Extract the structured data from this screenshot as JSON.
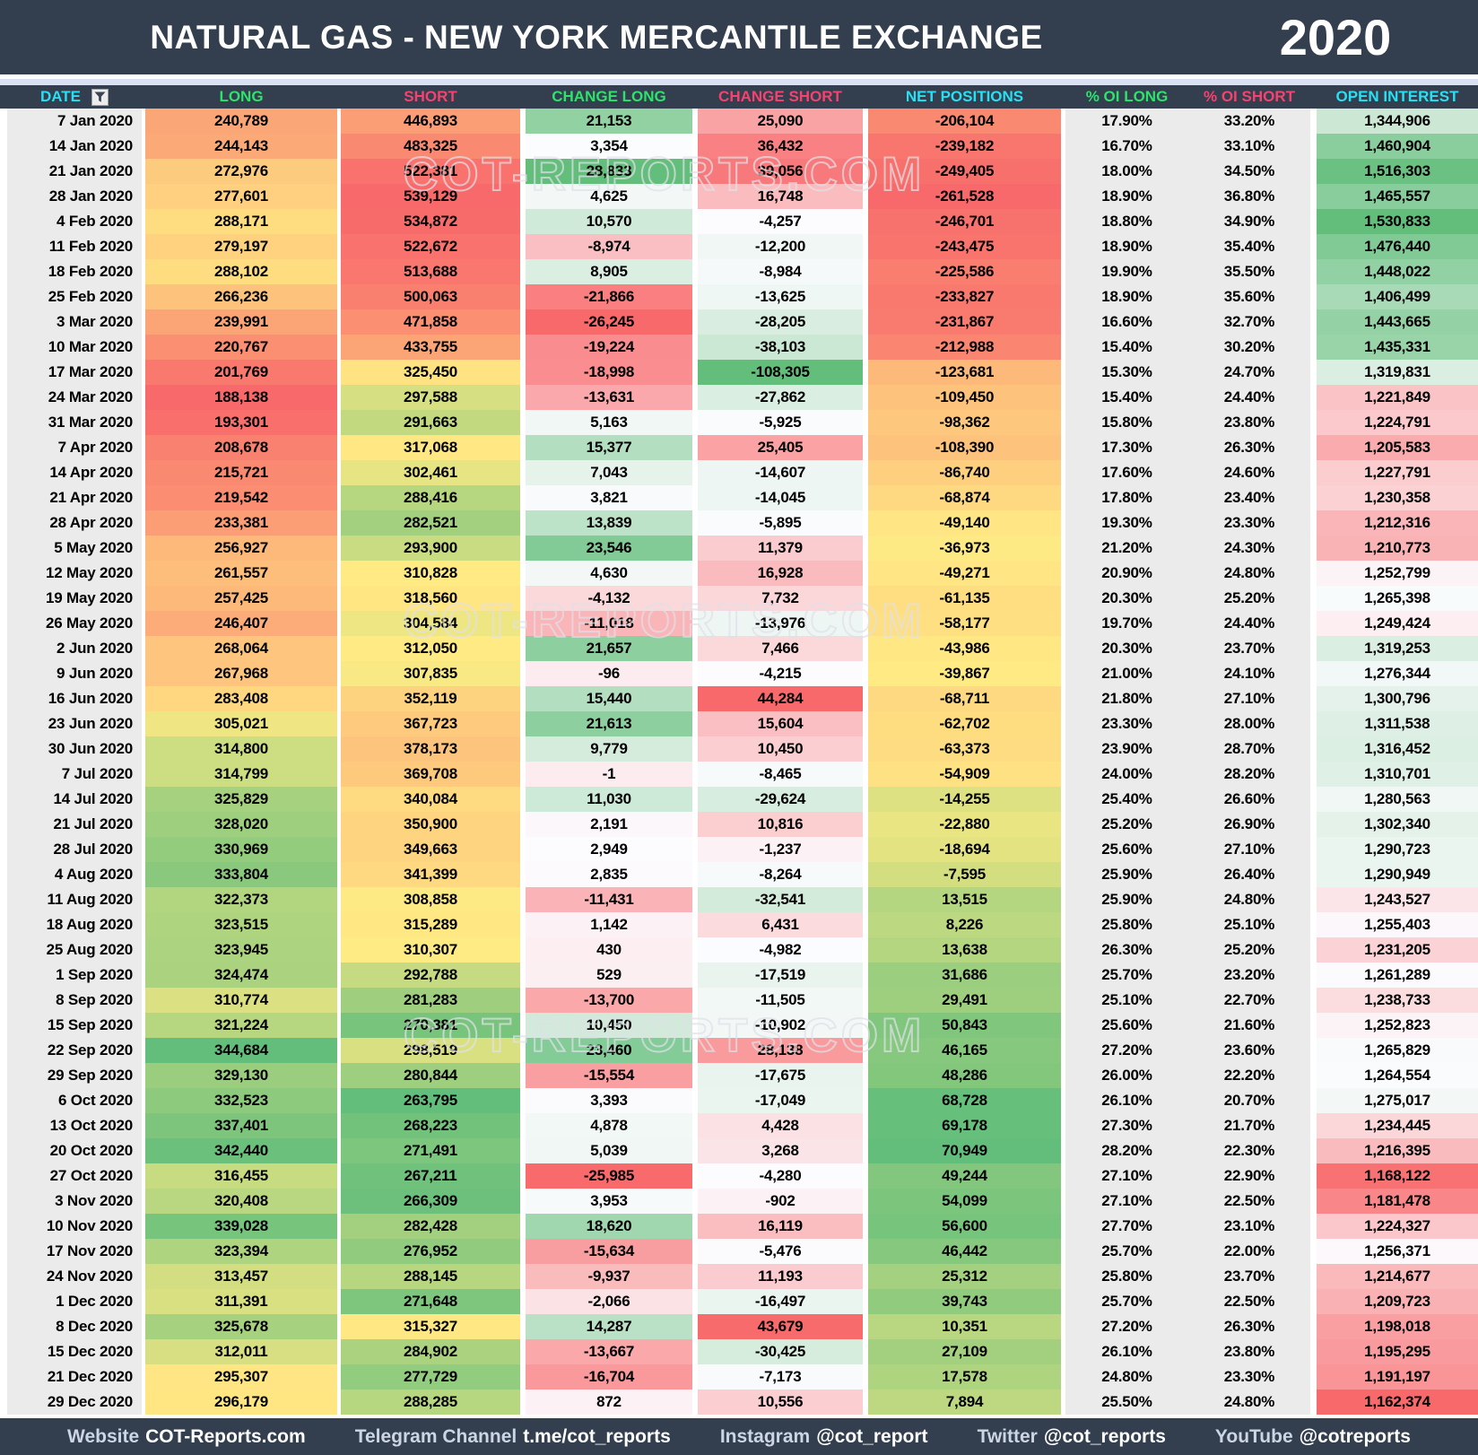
{
  "header": {
    "title": "NATURAL GAS - NEW YORK MERCANTILE EXCHANGE",
    "year": "2020"
  },
  "watermark": {
    "text": "COT-REPORTS.COM"
  },
  "heatmap": {
    "red": "#F8696B",
    "yellow": "#FFEB84",
    "green": "#63BE7B",
    "white": "#FCFCFF",
    "flat_bg": "#EBEBEB",
    "navy": "#333F4F",
    "divider": "#D9E1F2"
  },
  "chart_data": {
    "type": "table",
    "columns": [
      {
        "key": "date",
        "label": "DATE",
        "header_color": "#29E0F2",
        "scale": "none"
      },
      {
        "key": "long",
        "label": "LONG",
        "header_color": "#2EE26B",
        "scale": "ryg"
      },
      {
        "key": "short",
        "label": "SHORT",
        "header_color": "#F5426F",
        "scale": "gyr"
      },
      {
        "key": "change-long",
        "label": "CHANGE LONG",
        "header_color": "#2EE26B",
        "scale": "rwg"
      },
      {
        "key": "change-short",
        "label": "CHANGE SHORT",
        "header_color": "#F5426F",
        "scale": "gwr"
      },
      {
        "key": "net-positions",
        "label": "NET POSITIONS",
        "header_color": "#29E0F2",
        "scale": "ryg"
      },
      {
        "key": "pct-oi-long",
        "label": "% OI LONG",
        "header_color": "#2EE26B",
        "scale": "flat"
      },
      {
        "key": "pct-oi-short",
        "label": "% OI SHORT",
        "header_color": "#F5426F",
        "scale": "flat"
      },
      {
        "key": "open-interest",
        "label": "OPEN INTEREST",
        "header_color": "#29E0F2",
        "scale": "rwg"
      }
    ],
    "rows": [
      [
        "7 Jan 2020",
        "240,789",
        "446,893",
        "21,153",
        "25,090",
        "-206,104",
        "17.90%",
        "33.20%",
        "1,344,906"
      ],
      [
        "14 Jan 2020",
        "244,143",
        "483,325",
        "3,354",
        "36,432",
        "-239,182",
        "16.70%",
        "33.10%",
        "1,460,904"
      ],
      [
        "21 Jan 2020",
        "272,976",
        "522,381",
        "28,833",
        "39,056",
        "-249,405",
        "18.00%",
        "34.50%",
        "1,516,303"
      ],
      [
        "28 Jan 2020",
        "277,601",
        "539,129",
        "4,625",
        "16,748",
        "-261,528",
        "18.90%",
        "36.80%",
        "1,465,557"
      ],
      [
        "4 Feb 2020",
        "288,171",
        "534,872",
        "10,570",
        "-4,257",
        "-246,701",
        "18.80%",
        "34.90%",
        "1,530,833"
      ],
      [
        "11 Feb 2020",
        "279,197",
        "522,672",
        "-8,974",
        "-12,200",
        "-243,475",
        "18.90%",
        "35.40%",
        "1,476,440"
      ],
      [
        "18 Feb 2020",
        "288,102",
        "513,688",
        "8,905",
        "-8,984",
        "-225,586",
        "19.90%",
        "35.50%",
        "1,448,022"
      ],
      [
        "25 Feb 2020",
        "266,236",
        "500,063",
        "-21,866",
        "-13,625",
        "-233,827",
        "18.90%",
        "35.60%",
        "1,406,499"
      ],
      [
        "3 Mar 2020",
        "239,991",
        "471,858",
        "-26,245",
        "-28,205",
        "-231,867",
        "16.60%",
        "32.70%",
        "1,443,665"
      ],
      [
        "10 Mar 2020",
        "220,767",
        "433,755",
        "-19,224",
        "-38,103",
        "-212,988",
        "15.40%",
        "30.20%",
        "1,435,331"
      ],
      [
        "17 Mar 2020",
        "201,769",
        "325,450",
        "-18,998",
        "-108,305",
        "-123,681",
        "15.30%",
        "24.70%",
        "1,319,831"
      ],
      [
        "24 Mar 2020",
        "188,138",
        "297,588",
        "-13,631",
        "-27,862",
        "-109,450",
        "15.40%",
        "24.40%",
        "1,221,849"
      ],
      [
        "31 Mar 2020",
        "193,301",
        "291,663",
        "5,163",
        "-5,925",
        "-98,362",
        "15.80%",
        "23.80%",
        "1,224,791"
      ],
      [
        "7 Apr 2020",
        "208,678",
        "317,068",
        "15,377",
        "25,405",
        "-108,390",
        "17.30%",
        "26.30%",
        "1,205,583"
      ],
      [
        "14 Apr 2020",
        "215,721",
        "302,461",
        "7,043",
        "-14,607",
        "-86,740",
        "17.60%",
        "24.60%",
        "1,227,791"
      ],
      [
        "21 Apr 2020",
        "219,542",
        "288,416",
        "3,821",
        "-14,045",
        "-68,874",
        "17.80%",
        "23.40%",
        "1,230,358"
      ],
      [
        "28 Apr 2020",
        "233,381",
        "282,521",
        "13,839",
        "-5,895",
        "-49,140",
        "19.30%",
        "23.30%",
        "1,212,316"
      ],
      [
        "5 May 2020",
        "256,927",
        "293,900",
        "23,546",
        "11,379",
        "-36,973",
        "21.20%",
        "24.30%",
        "1,210,773"
      ],
      [
        "12 May 2020",
        "261,557",
        "310,828",
        "4,630",
        "16,928",
        "-49,271",
        "20.90%",
        "24.80%",
        "1,252,799"
      ],
      [
        "19 May 2020",
        "257,425",
        "318,560",
        "-4,132",
        "7,732",
        "-61,135",
        "20.30%",
        "25.20%",
        "1,265,398"
      ],
      [
        "26 May 2020",
        "246,407",
        "304,584",
        "-11,018",
        "-13,976",
        "-58,177",
        "19.70%",
        "24.40%",
        "1,249,424"
      ],
      [
        "2 Jun 2020",
        "268,064",
        "312,050",
        "21,657",
        "7,466",
        "-43,986",
        "20.30%",
        "23.70%",
        "1,319,253"
      ],
      [
        "9 Jun 2020",
        "267,968",
        "307,835",
        "-96",
        "-4,215",
        "-39,867",
        "21.00%",
        "24.10%",
        "1,276,344"
      ],
      [
        "16 Jun 2020",
        "283,408",
        "352,119",
        "15,440",
        "44,284",
        "-68,711",
        "21.80%",
        "27.10%",
        "1,300,796"
      ],
      [
        "23 Jun 2020",
        "305,021",
        "367,723",
        "21,613",
        "15,604",
        "-62,702",
        "23.30%",
        "28.00%",
        "1,311,538"
      ],
      [
        "30 Jun 2020",
        "314,800",
        "378,173",
        "9,779",
        "10,450",
        "-63,373",
        "23.90%",
        "28.70%",
        "1,316,452"
      ],
      [
        "7 Jul 2020",
        "314,799",
        "369,708",
        "-1",
        "-8,465",
        "-54,909",
        "24.00%",
        "28.20%",
        "1,310,701"
      ],
      [
        "14 Jul 2020",
        "325,829",
        "340,084",
        "11,030",
        "-29,624",
        "-14,255",
        "25.40%",
        "26.60%",
        "1,280,563"
      ],
      [
        "21 Jul 2020",
        "328,020",
        "350,900",
        "2,191",
        "10,816",
        "-22,880",
        "25.20%",
        "26.90%",
        "1,302,340"
      ],
      [
        "28 Jul 2020",
        "330,969",
        "349,663",
        "2,949",
        "-1,237",
        "-18,694",
        "25.60%",
        "27.10%",
        "1,290,723"
      ],
      [
        "4 Aug 2020",
        "333,804",
        "341,399",
        "2,835",
        "-8,264",
        "-7,595",
        "25.90%",
        "26.40%",
        "1,290,949"
      ],
      [
        "11 Aug 2020",
        "322,373",
        "308,858",
        "-11,431",
        "-32,541",
        "13,515",
        "25.90%",
        "24.80%",
        "1,243,527"
      ],
      [
        "18 Aug 2020",
        "323,515",
        "315,289",
        "1,142",
        "6,431",
        "8,226",
        "25.80%",
        "25.10%",
        "1,255,403"
      ],
      [
        "25 Aug 2020",
        "323,945",
        "310,307",
        "430",
        "-4,982",
        "13,638",
        "26.30%",
        "25.20%",
        "1,231,205"
      ],
      [
        "1 Sep 2020",
        "324,474",
        "292,788",
        "529",
        "-17,519",
        "31,686",
        "25.70%",
        "23.20%",
        "1,261,289"
      ],
      [
        "8 Sep 2020",
        "310,774",
        "281,283",
        "-13,700",
        "-11,505",
        "29,491",
        "25.10%",
        "22.70%",
        "1,238,733"
      ],
      [
        "15 Sep 2020",
        "321,224",
        "270,381",
        "10,450",
        "-10,902",
        "50,843",
        "25.60%",
        "21.60%",
        "1,252,823"
      ],
      [
        "22 Sep 2020",
        "344,684",
        "298,519",
        "23,460",
        "28,138",
        "46,165",
        "27.20%",
        "23.60%",
        "1,265,829"
      ],
      [
        "29 Sep 2020",
        "329,130",
        "280,844",
        "-15,554",
        "-17,675",
        "48,286",
        "26.00%",
        "22.20%",
        "1,264,554"
      ],
      [
        "6 Oct 2020",
        "332,523",
        "263,795",
        "3,393",
        "-17,049",
        "68,728",
        "26.10%",
        "20.70%",
        "1,275,017"
      ],
      [
        "13 Oct 2020",
        "337,401",
        "268,223",
        "4,878",
        "4,428",
        "69,178",
        "27.30%",
        "21.70%",
        "1,234,445"
      ],
      [
        "20 Oct 2020",
        "342,440",
        "271,491",
        "5,039",
        "3,268",
        "70,949",
        "28.20%",
        "22.30%",
        "1,216,395"
      ],
      [
        "27 Oct 2020",
        "316,455",
        "267,211",
        "-25,985",
        "-4,280",
        "49,244",
        "27.10%",
        "22.90%",
        "1,168,122"
      ],
      [
        "3 Nov 2020",
        "320,408",
        "266,309",
        "3,953",
        "-902",
        "54,099",
        "27.10%",
        "22.50%",
        "1,181,478"
      ],
      [
        "10 Nov 2020",
        "339,028",
        "282,428",
        "18,620",
        "16,119",
        "56,600",
        "27.70%",
        "23.10%",
        "1,224,327"
      ],
      [
        "17 Nov 2020",
        "323,394",
        "276,952",
        "-15,634",
        "-5,476",
        "46,442",
        "25.70%",
        "22.00%",
        "1,256,371"
      ],
      [
        "24 Nov 2020",
        "313,457",
        "288,145",
        "-9,937",
        "11,193",
        "25,312",
        "25.80%",
        "23.70%",
        "1,214,677"
      ],
      [
        "1 Dec 2020",
        "311,391",
        "271,648",
        "-2,066",
        "-16,497",
        "39,743",
        "25.70%",
        "22.50%",
        "1,209,723"
      ],
      [
        "8 Dec 2020",
        "325,678",
        "315,327",
        "14,287",
        "43,679",
        "10,351",
        "27.20%",
        "26.30%",
        "1,198,018"
      ],
      [
        "15 Dec 2020",
        "312,011",
        "284,902",
        "-13,667",
        "-30,425",
        "27,109",
        "26.10%",
        "23.80%",
        "1,195,295"
      ],
      [
        "21 Dec 2020",
        "295,307",
        "277,729",
        "-16,704",
        "-7,173",
        "17,578",
        "24.80%",
        "23.30%",
        "1,191,197"
      ],
      [
        "29 Dec 2020",
        "296,179",
        "288,285",
        "872",
        "10,556",
        "7,894",
        "25.50%",
        "24.80%",
        "1,162,374"
      ]
    ]
  },
  "footer": {
    "items": [
      {
        "label": "Website",
        "value": "COT-Reports.com"
      },
      {
        "label": "Telegram Channel",
        "value": "t.me/cot_reports"
      },
      {
        "label": "Instagram",
        "value": "@cot_report"
      },
      {
        "label": "Twitter",
        "value": "@cot_reports"
      },
      {
        "label": "YouTube",
        "value": "@cotreports"
      }
    ]
  }
}
